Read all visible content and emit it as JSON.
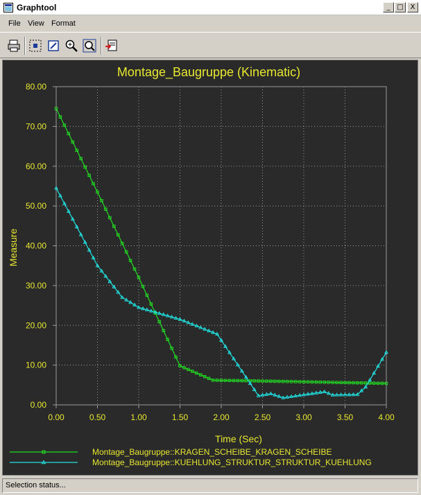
{
  "window": {
    "title": "Graphtool",
    "minimize_glyph": "_",
    "maximize_glyph": "□",
    "close_glyph": "X"
  },
  "menu": {
    "items": [
      "File",
      "View",
      "Format"
    ]
  },
  "toolbar": {
    "buttons": [
      "print-icon",
      "select-grid-icon",
      "edit-icon",
      "zoom-in-icon",
      "zoom-fit-icon",
      "export-icon"
    ]
  },
  "colors": {
    "plot_bg": "#2a2a2a",
    "title_text": "#e8e830",
    "axis_text": "#e8e830",
    "grid": "#9a9a9a",
    "series1": "#22e022",
    "series2": "#22e0e0"
  },
  "chart_data": {
    "type": "line",
    "title": "Montage_Baugruppe (Kinematic)",
    "xlabel": "Time (Sec)",
    "ylabel": "Measure",
    "xlim": [
      0,
      4
    ],
    "ylim": [
      0,
      80
    ],
    "xticks": [
      "0.00",
      "0.50",
      "1.00",
      "1.50",
      "2.00",
      "2.50",
      "3.00",
      "3.50",
      "4.00"
    ],
    "yticks": [
      "0.00",
      "10.00",
      "20.00",
      "30.00",
      "40.00",
      "50.00",
      "60.00",
      "70.00",
      "80.00"
    ],
    "grid": true,
    "legend_position": "bottom",
    "series": [
      {
        "name": "Montage_Baugruppe::KRAGEN_SCHEIBE_KRAGEN_SCHEIBE",
        "marker": "square",
        "color": "#22e022",
        "points": [
          [
            0.0,
            74.5
          ],
          [
            0.5,
            53.5
          ],
          [
            1.0,
            32.0
          ],
          [
            1.5,
            9.8
          ],
          [
            1.9,
            6.2
          ],
          [
            2.5,
            6.0
          ],
          [
            3.0,
            5.8
          ],
          [
            3.5,
            5.6
          ],
          [
            4.0,
            5.4
          ]
        ]
      },
      {
        "name": "Montage_Baugruppe::KUEHLUNG_STRUKTUR_STRUKTUR_KUEHLUNG",
        "marker": "triangle",
        "color": "#22e0e0",
        "points": [
          [
            0.0,
            54.5
          ],
          [
            0.5,
            35.0
          ],
          [
            0.8,
            27.0
          ],
          [
            1.0,
            24.5
          ],
          [
            1.5,
            21.5
          ],
          [
            1.95,
            17.8
          ],
          [
            2.45,
            2.3
          ],
          [
            2.6,
            2.8
          ],
          [
            2.75,
            1.8
          ],
          [
            3.25,
            3.3
          ],
          [
            3.35,
            2.5
          ],
          [
            3.65,
            2.6
          ],
          [
            3.75,
            4.5
          ],
          [
            4.0,
            13.2
          ]
        ]
      }
    ]
  },
  "status": {
    "text": "Selection status..."
  }
}
